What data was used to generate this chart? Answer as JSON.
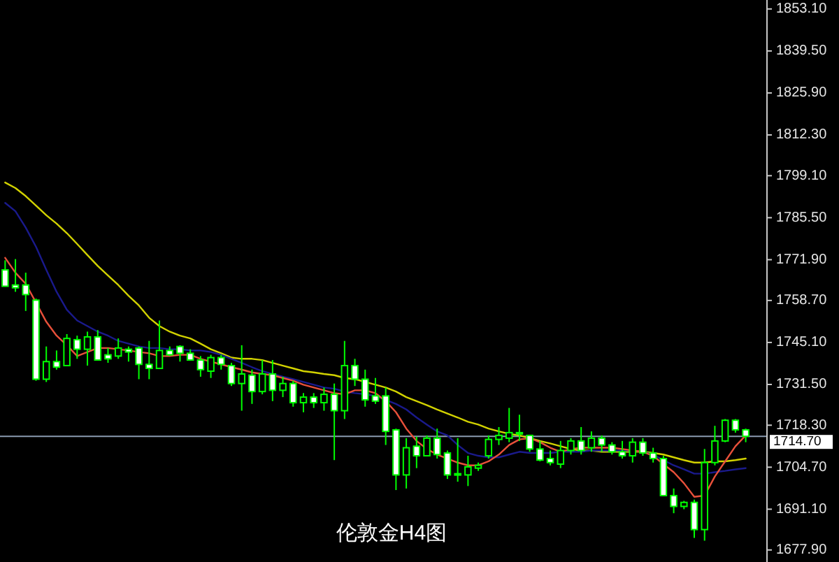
{
  "chart_data": {
    "type": "candlestick",
    "title": "伦敦金H4图",
    "categories": [
      null,
      null,
      null,
      null,
      null,
      null,
      null,
      null,
      null,
      null,
      null,
      null,
      null,
      null,
      null,
      null,
      null,
      null,
      null,
      null,
      null,
      null,
      null,
      null,
      null,
      null,
      null,
      null,
      null,
      null,
      null,
      null,
      null,
      null,
      null,
      null,
      null,
      null,
      null,
      null,
      null,
      null,
      null,
      null,
      null,
      null,
      null,
      null,
      null,
      null,
      null,
      null,
      null,
      null,
      null,
      null,
      null,
      null,
      null,
      null,
      null,
      null,
      null,
      null,
      null,
      null,
      null,
      null,
      null,
      null,
      null,
      null,
      null
    ],
    "ohlc": [
      [
        1768.6,
        1771.7,
        1763.3,
        1763.3
      ],
      [
        1763.7,
        1772.1,
        1761.5,
        1762.8
      ],
      [
        1763.7,
        1767.7,
        1755.3,
        1760.6
      ],
      [
        1758.8,
        1759.3,
        1732.7,
        1733.2
      ],
      [
        1733.2,
        1743.8,
        1732.3,
        1738.9
      ],
      [
        1738.9,
        1742.5,
        1736.3,
        1737.1
      ],
      [
        1737.6,
        1747.8,
        1737.6,
        1746.4
      ],
      [
        1746.0,
        1747.3,
        1739.8,
        1742.9
      ],
      [
        1742.9,
        1748.6,
        1737.6,
        1746.9
      ],
      [
        1746.9,
        1749.1,
        1739.4,
        1739.4
      ],
      [
        1741.1,
        1743.3,
        1738.5,
        1739.8
      ],
      [
        1740.7,
        1746.4,
        1739.8,
        1743.3
      ],
      [
        1742.9,
        1743.8,
        1738.9,
        1742.0
      ],
      [
        1743.3,
        1743.8,
        1733.2,
        1738.0
      ],
      [
        1738.0,
        1745.6,
        1733.2,
        1736.7
      ],
      [
        1736.7,
        1752.2,
        1736.7,
        1742.5
      ],
      [
        1742.5,
        1743.8,
        1740.7,
        1741.1
      ],
      [
        1743.8,
        1744.2,
        1738.9,
        1741.6
      ],
      [
        1741.6,
        1742.9,
        1739.4,
        1739.4
      ],
      [
        1739.4,
        1740.7,
        1734.0,
        1736.3
      ],
      [
        1735.8,
        1741.1,
        1733.6,
        1740.2
      ],
      [
        1740.2,
        1741.1,
        1736.3,
        1738.0
      ],
      [
        1737.6,
        1738.5,
        1731.0,
        1731.8
      ],
      [
        1731.8,
        1744.2,
        1723.0,
        1734.9
      ],
      [
        1734.5,
        1736.3,
        1725.2,
        1729.2
      ],
      [
        1729.2,
        1739.4,
        1728.3,
        1734.9
      ],
      [
        1734.9,
        1739.4,
        1726.1,
        1729.6
      ],
      [
        1729.6,
        1734.0,
        1727.4,
        1731.8
      ],
      [
        1731.8,
        1732.7,
        1724.3,
        1725.6
      ],
      [
        1725.6,
        1728.7,
        1722.5,
        1727.4
      ],
      [
        1727.4,
        1728.7,
        1723.9,
        1725.6
      ],
      [
        1725.6,
        1730.5,
        1723.0,
        1728.3
      ],
      [
        1728.3,
        1731.8,
        1707.0,
        1723.0
      ],
      [
        1723.0,
        1745.6,
        1720.3,
        1737.6
      ],
      [
        1737.6,
        1739.8,
        1731.0,
        1733.2
      ],
      [
        1733.2,
        1736.3,
        1724.3,
        1726.5
      ],
      [
        1727.8,
        1733.6,
        1725.2,
        1726.1
      ],
      [
        1727.8,
        1730.5,
        1711.9,
        1716.3
      ],
      [
        1716.8,
        1717.2,
        1697.3,
        1702.2
      ],
      [
        1702.2,
        1714.1,
        1697.8,
        1711.0
      ],
      [
        1711.5,
        1714.6,
        1704.4,
        1708.4
      ],
      [
        1708.4,
        1715.0,
        1708.4,
        1714.1
      ],
      [
        1714.1,
        1717.2,
        1707.5,
        1708.8
      ],
      [
        1709.3,
        1710.1,
        1700.9,
        1702.2
      ],
      [
        1702.6,
        1714.1,
        1700.0,
        1702.2
      ],
      [
        1702.2,
        1708.4,
        1698.6,
        1704.8
      ],
      [
        1704.4,
        1706.2,
        1703.5,
        1705.3
      ],
      [
        1708.4,
        1715.0,
        1707.5,
        1713.7
      ],
      [
        1713.7,
        1717.7,
        1711.9,
        1715.0
      ],
      [
        1714.1,
        1723.9,
        1712.8,
        1715.9
      ],
      [
        1715.9,
        1721.7,
        1713.2,
        1715.5
      ],
      [
        1715.0,
        1715.0,
        1709.7,
        1710.6
      ],
      [
        1710.6,
        1713.2,
        1706.6,
        1707.0
      ],
      [
        1707.5,
        1710.1,
        1705.3,
        1706.2
      ],
      [
        1705.7,
        1713.2,
        1704.4,
        1710.1
      ],
      [
        1710.1,
        1714.1,
        1708.8,
        1713.2
      ],
      [
        1713.2,
        1717.7,
        1708.8,
        1710.1
      ],
      [
        1711.0,
        1716.3,
        1709.7,
        1714.1
      ],
      [
        1714.1,
        1715.0,
        1709.7,
        1711.9
      ],
      [
        1711.9,
        1712.8,
        1708.8,
        1709.7
      ],
      [
        1709.7,
        1713.2,
        1707.5,
        1708.4
      ],
      [
        1708.4,
        1714.1,
        1706.2,
        1712.8
      ],
      [
        1712.8,
        1714.1,
        1708.4,
        1709.3
      ],
      [
        1709.3,
        1711.0,
        1706.2,
        1707.5
      ],
      [
        1707.5,
        1708.4,
        1695.5,
        1695.5
      ],
      [
        1695.5,
        1697.8,
        1689.8,
        1692.0
      ],
      [
        1692.0,
        1693.8,
        1691.1,
        1693.3
      ],
      [
        1693.3,
        1694.2,
        1681.8,
        1684.5
      ],
      [
        1684.5,
        1710.6,
        1680.9,
        1706.2
      ],
      [
        1706.2,
        1718.1,
        1705.3,
        1713.2
      ],
      [
        1713.2,
        1720.3,
        1712.8,
        1719.9
      ],
      [
        1719.9,
        1720.3,
        1715.9,
        1716.8
      ],
      [
        1716.8,
        1717.2,
        1712.8,
        1714.7
      ]
    ],
    "series": [
      {
        "type": "line",
        "color": "#d2d200",
        "values": [
          1796.9,
          1795.1,
          1792.5,
          1789.4,
          1786.3,
          1783.6,
          1780.5,
          1777.0,
          1773.4,
          1769.9,
          1766.8,
          1763.7,
          1760.2,
          1757.1,
          1753.1,
          1750.4,
          1748.6,
          1747.3,
          1746.4,
          1744.7,
          1742.9,
          1741.6,
          1740.2,
          1739.8,
          1739.8,
          1739.4,
          1738.5,
          1737.6,
          1736.7,
          1735.8,
          1735.4,
          1734.9,
          1734.5,
          1733.6,
          1733.2,
          1732.3,
          1731.4,
          1730.5,
          1729.2,
          1727.4,
          1726.1,
          1724.8,
          1723.4,
          1722.1,
          1720.8,
          1719.4,
          1718.5,
          1717.2,
          1716.3,
          1715.5,
          1715.0,
          1714.1,
          1713.2,
          1712.4,
          1711.5,
          1710.6,
          1710.1,
          1710.1,
          1709.7,
          1709.7,
          1709.7,
          1709.7,
          1709.7,
          1709.3,
          1708.8,
          1707.9,
          1707.0,
          1706.2,
          1706.2,
          1706.6,
          1706.6,
          1707.0,
          1707.5
        ]
      },
      {
        "type": "line",
        "color": "#1a1a8c",
        "values": [
          1790.3,
          1787.6,
          1782.3,
          1776.1,
          1768.6,
          1761.5,
          1755.7,
          1752.2,
          1750.4,
          1748.6,
          1747.3,
          1745.6,
          1744.7,
          1743.8,
          1743.3,
          1743.3,
          1742.9,
          1742.9,
          1742.5,
          1742.5,
          1742.0,
          1741.1,
          1739.8,
          1738.5,
          1737.1,
          1735.8,
          1734.9,
          1734.0,
          1733.2,
          1732.3,
          1731.4,
          1730.5,
          1730.1,
          1729.2,
          1728.7,
          1728.3,
          1727.8,
          1726.5,
          1725.2,
          1723.4,
          1720.8,
          1718.5,
          1716.3,
          1715.0,
          1711.9,
          1709.3,
          1708.4,
          1707.9,
          1707.9,
          1708.8,
          1709.7,
          1709.3,
          1709.3,
          1709.3,
          1709.7,
          1709.7,
          1709.7,
          1710.1,
          1710.1,
          1710.1,
          1710.1,
          1710.1,
          1709.7,
          1708.8,
          1707.0,
          1705.3,
          1704.0,
          1702.6,
          1702.6,
          1703.1,
          1703.5,
          1704.0,
          1704.4
        ]
      },
      {
        "type": "line",
        "color": "#e8503a",
        "values": [
          1772.5,
          1767.7,
          1764.1,
          1758.0,
          1751.8,
          1747.3,
          1744.2,
          1740.7,
          1742.0,
          1743.3,
          1743.3,
          1742.9,
          1742.5,
          1742.0,
          1741.6,
          1740.7,
          1740.7,
          1741.1,
          1741.1,
          1739.8,
          1738.9,
          1738.0,
          1737.1,
          1736.3,
          1735.4,
          1734.9,
          1734.5,
          1733.6,
          1732.7,
          1731.4,
          1730.5,
          1729.6,
          1728.7,
          1728.3,
          1729.6,
          1729.6,
          1728.7,
          1726.1,
          1722.5,
          1717.2,
          1713.2,
          1710.6,
          1708.8,
          1707.5,
          1706.2,
          1705.3,
          1705.3,
          1706.6,
          1708.8,
          1711.9,
          1713.7,
          1714.1,
          1712.8,
          1711.0,
          1709.7,
          1710.6,
          1711.0,
          1711.0,
          1711.0,
          1711.0,
          1710.6,
          1710.1,
          1709.7,
          1708.4,
          1705.7,
          1703.1,
          1699.5,
          1695.1,
          1695.5,
          1701.7,
          1706.6,
          1711.5,
          1715.0
        ]
      }
    ],
    "ylim": [
      1674.0,
      1856.0
    ],
    "yticks": [
      {
        "value": 1853.1,
        "label": "1853.10"
      },
      {
        "value": 1839.5,
        "label": "1839.50"
      },
      {
        "value": 1825.9,
        "label": "1825.90"
      },
      {
        "value": 1812.3,
        "label": "1812.30"
      },
      {
        "value": 1799.1,
        "label": "1799.10"
      },
      {
        "value": 1785.5,
        "label": "1785.50"
      },
      {
        "value": 1771.9,
        "label": "1771.90"
      },
      {
        "value": 1758.7,
        "label": "1758.70"
      },
      {
        "value": 1745.1,
        "label": "1745.10"
      },
      {
        "value": 1731.5,
        "label": "1731.50"
      },
      {
        "value": 1718.3,
        "label": "1718.30"
      },
      {
        "value": 1704.7,
        "label": "1704.70"
      },
      {
        "value": 1691.1,
        "label": "1691.10"
      },
      {
        "value": 1677.9,
        "label": "1677.90"
      }
    ],
    "ref_lines": [
      {
        "axis": "y",
        "value": 1714.7,
        "label": "1714.70",
        "color": "#8a9bb0"
      }
    ],
    "tick_labels": "y"
  }
}
